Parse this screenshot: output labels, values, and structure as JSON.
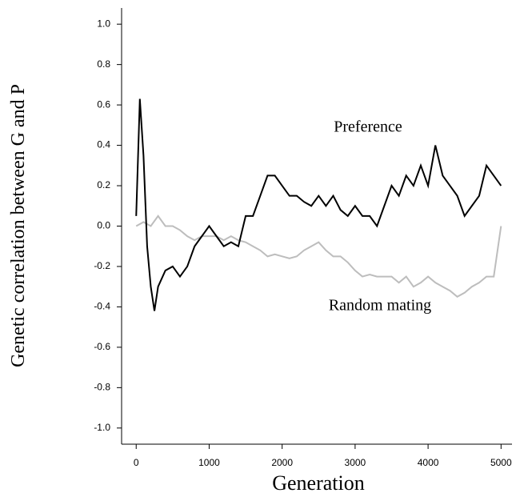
{
  "chart_data": {
    "type": "line",
    "x_label": "Generation",
    "y_label": "Genetic correlation between G and P",
    "xlim": [
      -200,
      5150
    ],
    "ylim": [
      -1.08,
      1.08
    ],
    "xticks": [
      0,
      1000,
      2000,
      3000,
      4000,
      5000
    ],
    "yticks": [
      {
        "value": 1.0,
        "label": "1.0"
      },
      {
        "value": 0.8,
        "label": "0.8"
      },
      {
        "value": 0.6,
        "label": "0.6"
      },
      {
        "value": 0.4,
        "label": "0.4"
      },
      {
        "value": 0.2,
        "label": "0.2"
      },
      {
        "value": 0.0,
        "label": "0.0"
      },
      {
        "value": -0.2,
        "label": "-0.2"
      },
      {
        "value": -0.4,
        "label": "-0.4"
      },
      {
        "value": -0.6,
        "label": "-0.6"
      },
      {
        "value": -0.8,
        "label": "-0.8"
      },
      {
        "value": -1.0,
        "label": "-1.0"
      }
    ],
    "series": [
      {
        "name": "Random mating",
        "color": "#bdbdbd",
        "x": [
          0,
          100,
          200,
          300,
          400,
          500,
          600,
          700,
          800,
          900,
          1000,
          1100,
          1200,
          1300,
          1400,
          1500,
          1600,
          1700,
          1800,
          1900,
          2000,
          2100,
          2200,
          2300,
          2400,
          2500,
          2600,
          2700,
          2800,
          2900,
          3000,
          3100,
          3200,
          3300,
          3400,
          3500,
          3600,
          3700,
          3800,
          3900,
          4000,
          4100,
          4200,
          4300,
          4400,
          4500,
          4600,
          4700,
          4800,
          4900,
          5000
        ],
        "values": [
          0.0,
          0.02,
          0.0,
          0.05,
          0.0,
          0.0,
          -0.02,
          -0.05,
          -0.07,
          -0.05,
          -0.05,
          -0.05,
          -0.07,
          -0.05,
          -0.07,
          -0.08,
          -0.1,
          -0.12,
          -0.15,
          -0.14,
          -0.15,
          -0.16,
          -0.15,
          -0.12,
          -0.1,
          -0.08,
          -0.12,
          -0.15,
          -0.15,
          -0.18,
          -0.22,
          -0.25,
          -0.24,
          -0.25,
          -0.25,
          -0.25,
          -0.28,
          -0.25,
          -0.3,
          -0.28,
          -0.25,
          -0.28,
          -0.3,
          -0.32,
          -0.35,
          -0.33,
          -0.3,
          -0.28,
          -0.25,
          -0.25,
          0.0
        ]
      },
      {
        "name": "Preference",
        "color": "#000000",
        "x": [
          0,
          50,
          100,
          150,
          200,
          250,
          300,
          400,
          500,
          600,
          700,
          800,
          900,
          1000,
          1100,
          1200,
          1300,
          1400,
          1500,
          1600,
          1700,
          1800,
          1900,
          2000,
          2100,
          2200,
          2300,
          2400,
          2500,
          2600,
          2700,
          2800,
          2900,
          3000,
          3100,
          3200,
          3300,
          3400,
          3500,
          3600,
          3700,
          3800,
          3900,
          4000,
          4100,
          4200,
          4300,
          4400,
          4500,
          4600,
          4700,
          4800,
          4900,
          5000
        ],
        "values": [
          0.05,
          0.63,
          0.35,
          -0.1,
          -0.3,
          -0.42,
          -0.3,
          -0.22,
          -0.2,
          -0.25,
          -0.2,
          -0.1,
          -0.05,
          0.0,
          -0.05,
          -0.1,
          -0.08,
          -0.1,
          0.05,
          0.05,
          0.15,
          0.25,
          0.25,
          0.2,
          0.15,
          0.15,
          0.12,
          0.1,
          0.15,
          0.1,
          0.15,
          0.08,
          0.05,
          0.1,
          0.05,
          0.05,
          0.0,
          0.1,
          0.2,
          0.15,
          0.25,
          0.2,
          0.3,
          0.2,
          0.4,
          0.25,
          0.2,
          0.15,
          0.05,
          0.1,
          0.15,
          0.3,
          0.25,
          0.2
        ]
      }
    ]
  }
}
